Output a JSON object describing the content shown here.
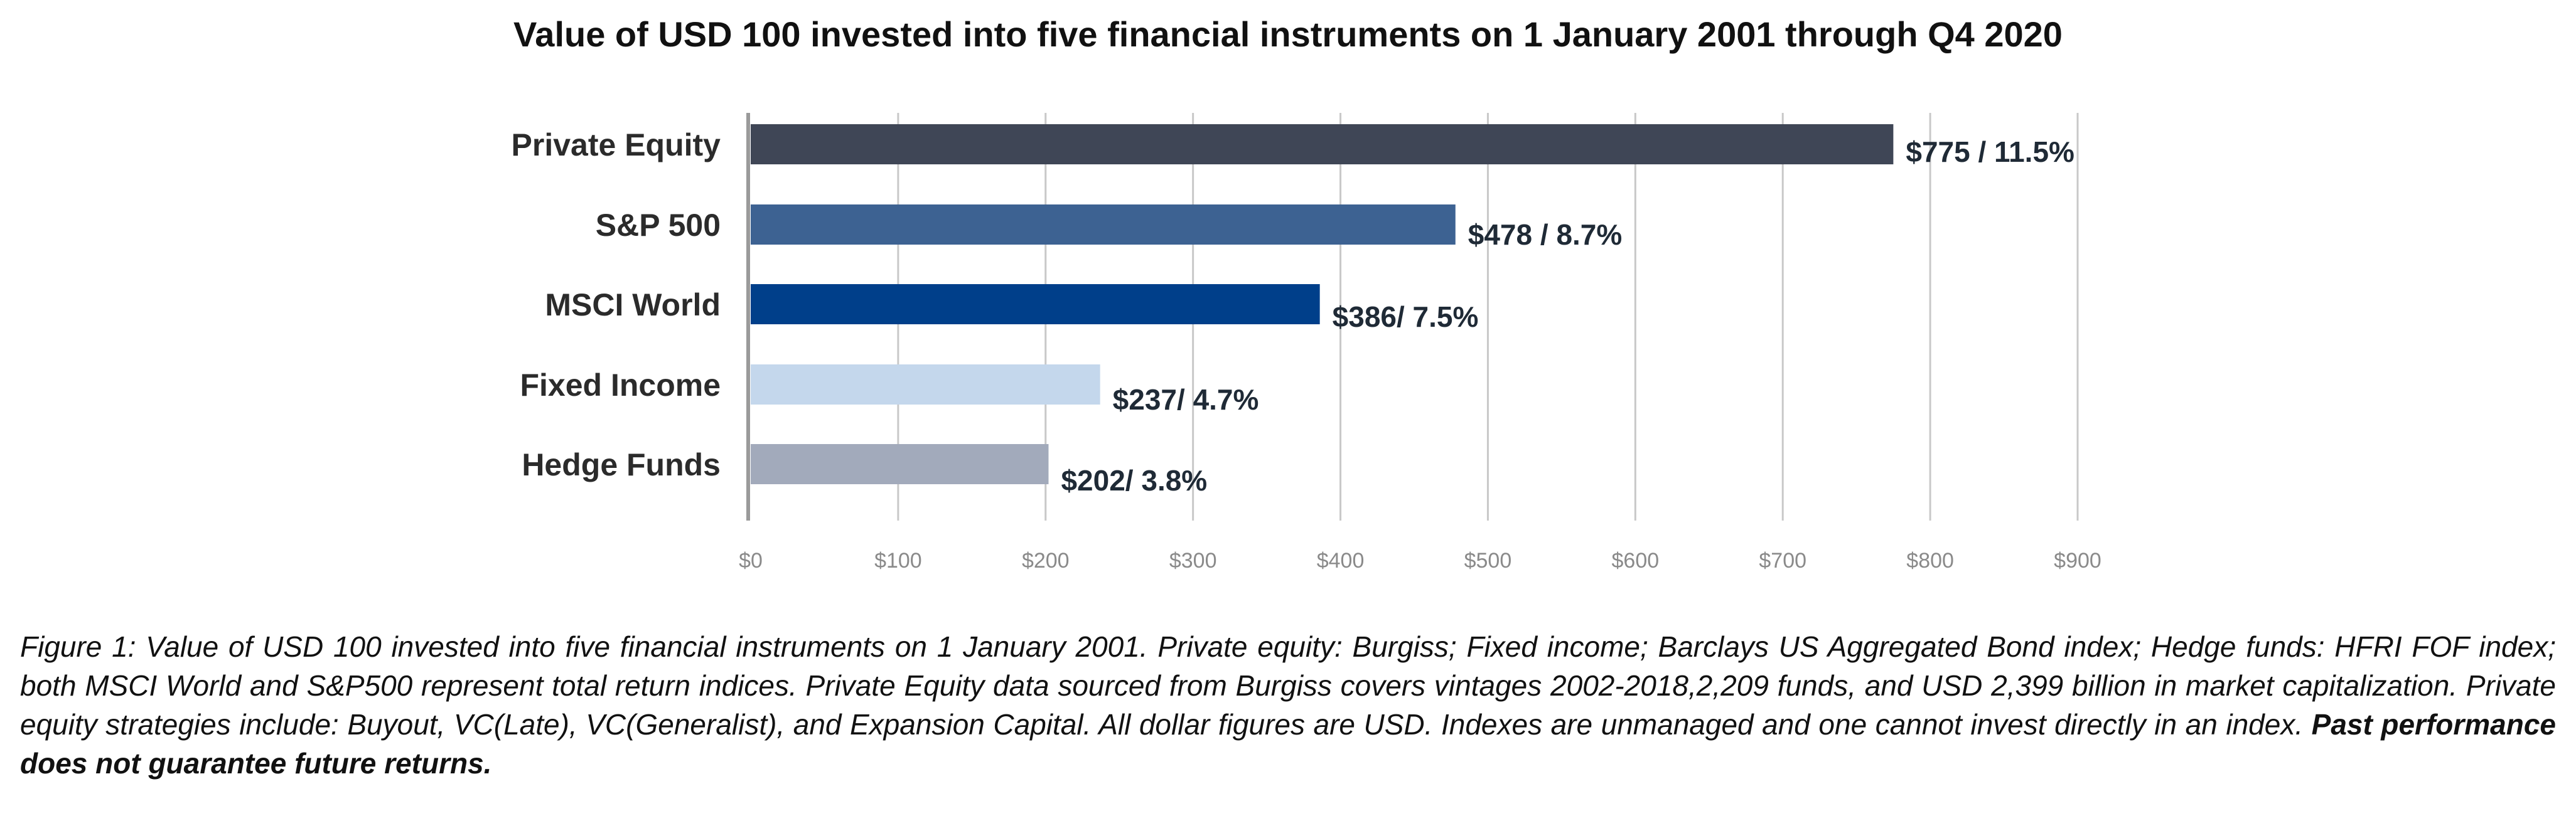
{
  "chart_data": {
    "type": "bar",
    "orientation": "horizontal",
    "title": "Value of USD 100 invested into five financial instruments on 1 January 2001 through Q4 2020",
    "categories": [
      "Private Equity",
      "S&P 500",
      "MSCI World",
      "Fixed Income",
      "Hedge Funds"
    ],
    "values": [
      775,
      478,
      386,
      237,
      202
    ],
    "data_labels": [
      "$775 / 11.5%",
      "$478 / 8.7%",
      "$386/ 7.5%",
      "$237/ 4.7%",
      "$202/ 3.8%"
    ],
    "colors": [
      "#3f4656",
      "#3d6292",
      "#003f8a",
      "#c4d7ec",
      "#a2aabb"
    ],
    "x_ticks": [
      "$0",
      "$100",
      "$200",
      "$300",
      "$400",
      "$500",
      "$600",
      "$700",
      "$800",
      "$900"
    ],
    "xlim": [
      0,
      900
    ],
    "grid": true,
    "xlabel": "",
    "ylabel": ""
  },
  "caption": {
    "text": "Figure 1: Value of USD 100 invested into five financial instruments on 1 January 2001. Private equity: Burgiss; Fixed income; Barclays US Aggregated Bond index; Hedge funds: HFRI FOF index; both MSCI World and S&P500 represent total return indices. Private Equity data sourced from Burgiss covers vintages 2002-2018,2,209 funds, and USD 2,399 billion in market capitalization. Private equity strategies include: Buyout, VC(Late), VC(Generalist), and Expansion Capital. All dollar figures are USD. Indexes are unmanaged and one cannot invest directly in an index.",
    "bold_text": "Past performance does not guarantee future returns."
  }
}
